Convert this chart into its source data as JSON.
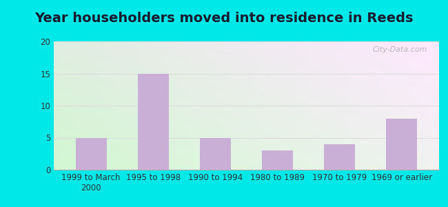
{
  "title": "Year householders moved into residence in Reeds",
  "categories": [
    "1999 to March\n2000",
    "1995 to 1998",
    "1990 to 1994",
    "1980 to 1989",
    "1970 to 1979",
    "1969 or earlier"
  ],
  "values": [
    5,
    15,
    5,
    3,
    4,
    8
  ],
  "bar_color": "#c9aed6",
  "ylim": [
    0,
    20
  ],
  "yticks": [
    0,
    5,
    10,
    15,
    20
  ],
  "background_outer": "#00e8e8",
  "background_topleft": "#d6ead6",
  "background_topright": "#f5f5f5",
  "background_bottomleft": "#c8e8c8",
  "background_bottomright": "#e8f0e8",
  "grid_color": "#dddddd",
  "title_fontsize": 14,
  "tick_fontsize": 8.5,
  "watermark": "City-Data.com",
  "title_color": "#1a1a2e"
}
